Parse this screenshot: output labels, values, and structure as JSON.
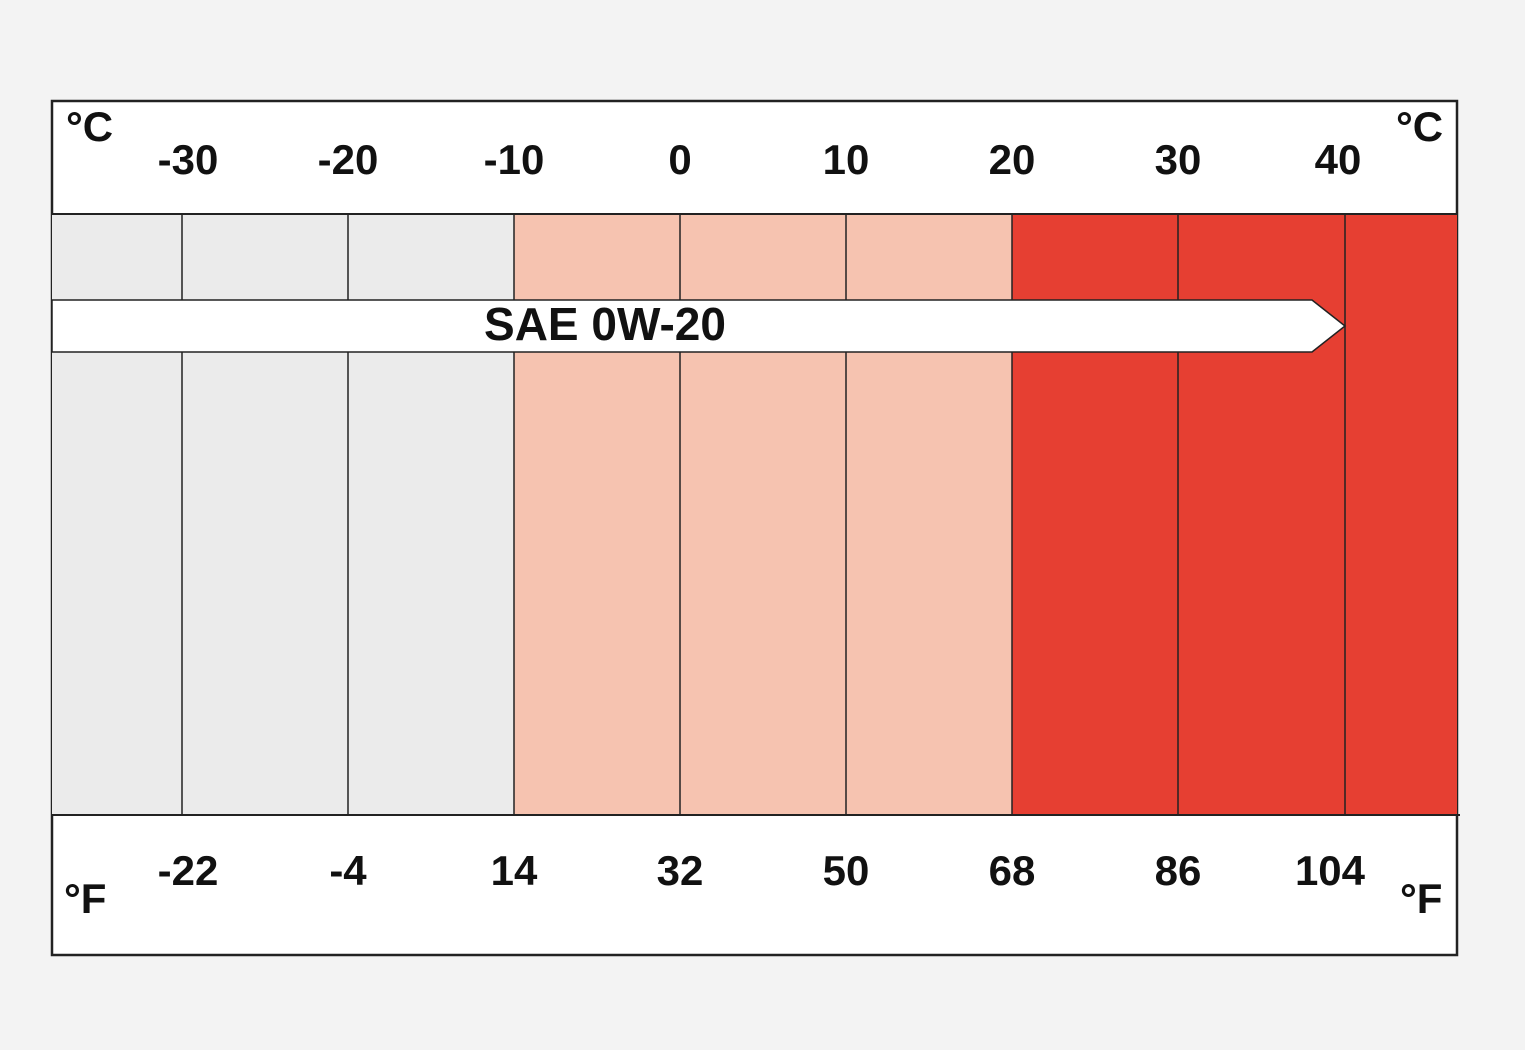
{
  "scale": {
    "celsius_unit": "°C",
    "fahrenheit_unit": "°F",
    "celsius_labels": [
      "-30",
      "-20",
      "-10",
      "0",
      "10",
      "20",
      "30",
      "40"
    ],
    "fahrenheit_labels": [
      "-22",
      "-4",
      "14",
      "32",
      "50",
      "68",
      "86",
      "104"
    ]
  },
  "oil": {
    "label": "SAE 0W-20"
  }
}
